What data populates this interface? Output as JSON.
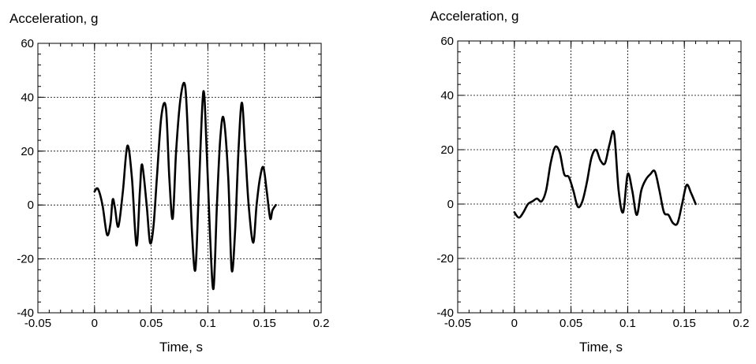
{
  "chart_data": [
    {
      "type": "line",
      "title": "",
      "ylabel": "Acceleration, g",
      "xlabel": "Time, s",
      "xlim": [
        -0.05,
        0.2
      ],
      "ylim": [
        -40,
        60
      ],
      "x_ticks": [
        -0.05,
        0,
        0.05,
        0.1,
        0.15,
        0.2
      ],
      "x_tick_labels": [
        "-0.05",
        "0",
        "0.05",
        "0.1",
        "0.15",
        "0.2"
      ],
      "y_ticks": [
        -40,
        -20,
        0,
        20,
        40,
        60
      ],
      "y_tick_labels": [
        "-40",
        "-20",
        "0",
        "20",
        "40",
        "60"
      ],
      "grid": true,
      "series": [
        {
          "x": [
            0,
            0.003,
            0.007,
            0.011,
            0.014,
            0.016,
            0.018,
            0.021,
            0.025,
            0.029,
            0.033,
            0.037,
            0.04,
            0.042,
            0.046,
            0.049,
            0.052,
            0.055,
            0.059,
            0.063,
            0.066,
            0.069,
            0.072,
            0.076,
            0.08,
            0.083,
            0.086,
            0.089,
            0.092,
            0.096,
            0.099,
            0.102,
            0.105,
            0.108,
            0.111,
            0.114,
            0.118,
            0.121,
            0.124,
            0.127,
            0.13,
            0.133,
            0.136,
            0.14,
            0.143,
            0.146,
            0.149,
            0.152,
            0.155,
            0.157,
            0.16
          ],
          "y": [
            5,
            6,
            0,
            -11,
            -7,
            2,
            -1,
            -8,
            5,
            22,
            10,
            -15,
            5,
            15,
            0,
            -14,
            -8,
            10,
            33,
            36,
            10,
            -5,
            20,
            40,
            44,
            20,
            -10,
            -24,
            5,
            42,
            20,
            -12,
            -31,
            0,
            25,
            32,
            10,
            -24,
            -10,
            20,
            38,
            20,
            0,
            -14,
            0,
            10,
            14,
            5,
            -5,
            -2,
            0
          ]
        }
      ]
    },
    {
      "type": "line",
      "title": "",
      "ylabel": "Acceleration, g",
      "xlabel": "Time, s",
      "xlim": [
        -0.05,
        0.2
      ],
      "ylim": [
        -40,
        60
      ],
      "x_ticks": [
        -0.05,
        0,
        0.05,
        0.1,
        0.15,
        0.2
      ],
      "x_tick_labels": [
        "-0.05",
        "0",
        "0.05",
        "0.1",
        "0.15",
        "0.2"
      ],
      "y_ticks": [
        -40,
        -20,
        0,
        20,
        40,
        60
      ],
      "y_tick_labels": [
        "-40",
        "-20",
        "0",
        "20",
        "40",
        "60"
      ],
      "grid": true,
      "series": [
        {
          "x": [
            0,
            0.004,
            0.008,
            0.012,
            0.016,
            0.02,
            0.024,
            0.028,
            0.032,
            0.036,
            0.04,
            0.044,
            0.048,
            0.052,
            0.056,
            0.06,
            0.064,
            0.068,
            0.072,
            0.076,
            0.08,
            0.084,
            0.088,
            0.092,
            0.096,
            0.1,
            0.104,
            0.108,
            0.112,
            0.116,
            0.12,
            0.124,
            0.128,
            0.132,
            0.136,
            0.14,
            0.144,
            0.148,
            0.152,
            0.156,
            0.16
          ],
          "y": [
            -3,
            -5,
            -3,
            0,
            1,
            2,
            1,
            5,
            15,
            21,
            19,
            11,
            10,
            5,
            -1,
            1,
            8,
            17,
            20,
            16,
            15,
            22,
            26,
            5,
            -3,
            11,
            5,
            -4,
            5,
            9,
            11,
            12,
            5,
            -3,
            -4,
            -7,
            -7,
            0,
            7,
            4,
            0
          ]
        }
      ]
    }
  ]
}
